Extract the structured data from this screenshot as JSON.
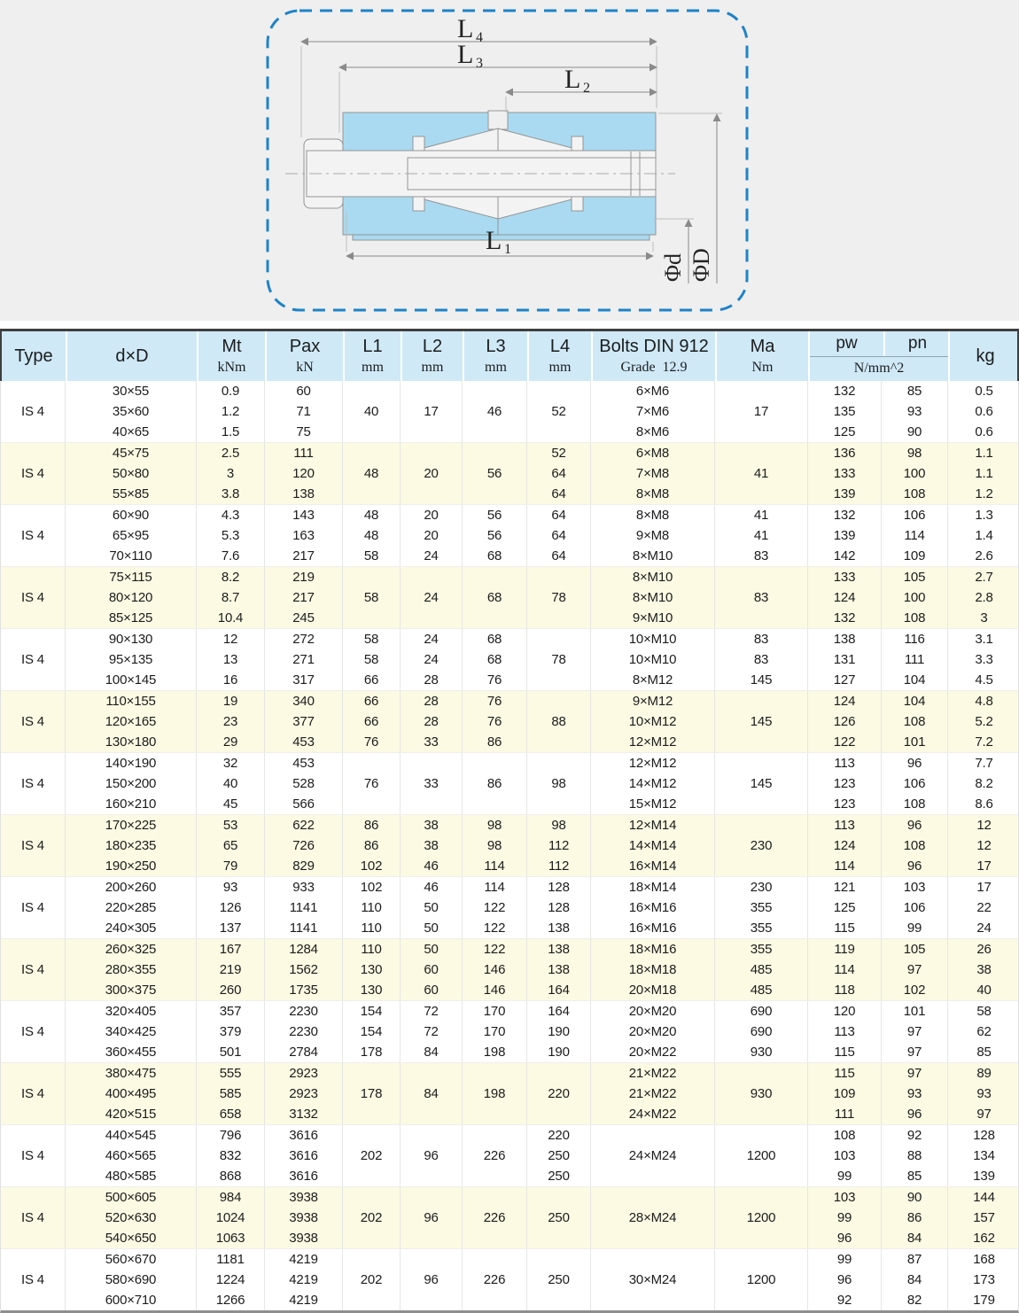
{
  "colors": {
    "hero_bg": "#efefef",
    "dashed_frame": "#1d83c9",
    "part_fill": "#a9daf1",
    "part_outline": "#8e8e8e",
    "header_bg": "#cfe9f7",
    "band_yellow": "#fcfae3",
    "top_border": "#3f3f3f"
  },
  "diagram": {
    "labels": {
      "l4": {
        "base": "L",
        "sub": "4"
      },
      "l3": {
        "base": "L",
        "sub": "3"
      },
      "l2": {
        "base": "L",
        "sub": "2"
      },
      "l1": {
        "base": "L",
        "sub": "1"
      },
      "phi_d": "Φd",
      "phi_D": "ΦD"
    }
  },
  "table": {
    "header": {
      "type": "Type",
      "dxd": "d×D",
      "mt": {
        "l1": "Mt",
        "l2": "kNm"
      },
      "pax": {
        "l1": "Pax",
        "l2": "kN"
      },
      "L1": {
        "l1": "L1",
        "l2": "mm"
      },
      "L2": {
        "l1": "L2",
        "l2": "mm"
      },
      "L3": {
        "l1": "L3",
        "l2": "mm"
      },
      "L4": {
        "l1": "L4",
        "l2": "mm"
      },
      "bolts": {
        "l1": "Bolts DIN 912",
        "l2": "Grade  12.9"
      },
      "ma": {
        "l1": "Ma",
        "l2": "Nm"
      },
      "pw": "pw",
      "pn": "pn",
      "pwpn_unit": "N/mm^2",
      "kg": "kg"
    },
    "groups": [
      {
        "type": "IS 4",
        "shaded": false,
        "rows": [
          {
            "dxd": "30×55",
            "mt": "0.9",
            "pax": "60",
            "l1": "",
            "l2": "",
            "l3": "",
            "l4": "",
            "bolts": "6×M6",
            "ma": "",
            "pw": "132",
            "pn": "85",
            "kg": "0.5"
          },
          {
            "dxd": "35×60",
            "mt": "1.2",
            "pax": "71",
            "l1": "40",
            "l2": "17",
            "l3": "46",
            "l4": "52",
            "bolts": "7×M6",
            "ma": "17",
            "pw": "135",
            "pn": "93",
            "kg": "0.6"
          },
          {
            "dxd": "40×65",
            "mt": "1.5",
            "pax": "75",
            "l1": "",
            "l2": "",
            "l3": "",
            "l4": "",
            "bolts": "8×M6",
            "ma": "",
            "pw": "125",
            "pn": "90",
            "kg": "0.6"
          }
        ]
      },
      {
        "type": "IS 4",
        "shaded": true,
        "rows": [
          {
            "dxd": "45×75",
            "mt": "2.5",
            "pax": "111",
            "l1": "",
            "l2": "",
            "l3": "",
            "l4": "52",
            "bolts": "6×M8",
            "ma": "",
            "pw": "136",
            "pn": "98",
            "kg": "1.1"
          },
          {
            "dxd": "50×80",
            "mt": "3",
            "pax": "120",
            "l1": "48",
            "l2": "20",
            "l3": "56",
            "l4": "64",
            "bolts": "7×M8",
            "ma": "41",
            "pw": "133",
            "pn": "100",
            "kg": "1.1"
          },
          {
            "dxd": "55×85",
            "mt": "3.8",
            "pax": "138",
            "l1": "",
            "l2": "",
            "l3": "",
            "l4": "64",
            "bolts": "8×M8",
            "ma": "",
            "pw": "139",
            "pn": "108",
            "kg": "1.2"
          }
        ]
      },
      {
        "type": "IS 4",
        "shaded": false,
        "rows": [
          {
            "dxd": "60×90",
            "mt": "4.3",
            "pax": "143",
            "l1": "48",
            "l2": "20",
            "l3": "56",
            "l4": "64",
            "bolts": "8×M8",
            "ma": "41",
            "pw": "132",
            "pn": "106",
            "kg": "1.3"
          },
          {
            "dxd": "65×95",
            "mt": "5.3",
            "pax": "163",
            "l1": "48",
            "l2": "20",
            "l3": "56",
            "l4": "64",
            "bolts": "9×M8",
            "ma": "41",
            "pw": "139",
            "pn": "114",
            "kg": "1.4"
          },
          {
            "dxd": "70×110",
            "mt": "7.6",
            "pax": "217",
            "l1": "58",
            "l2": "24",
            "l3": "68",
            "l4": "64",
            "bolts": "8×M10",
            "ma": "83",
            "pw": "142",
            "pn": "109",
            "kg": "2.6"
          }
        ]
      },
      {
        "type": "IS 4",
        "shaded": true,
        "rows": [
          {
            "dxd": "75×115",
            "mt": "8.2",
            "pax": "219",
            "l1": "",
            "l2": "",
            "l3": "",
            "l4": "",
            "bolts": "8×M10",
            "ma": "",
            "pw": "133",
            "pn": "105",
            "kg": "2.7"
          },
          {
            "dxd": "80×120",
            "mt": "8.7",
            "pax": "217",
            "l1": "58",
            "l2": "24",
            "l3": "68",
            "l4": "78",
            "bolts": "8×M10",
            "ma": "83",
            "pw": "124",
            "pn": "100",
            "kg": "2.8"
          },
          {
            "dxd": "85×125",
            "mt": "10.4",
            "pax": "245",
            "l1": "",
            "l2": "",
            "l3": "",
            "l4": "",
            "bolts": "9×M10",
            "ma": "",
            "pw": "132",
            "pn": "108",
            "kg": "3"
          }
        ]
      },
      {
        "type": "IS 4",
        "shaded": false,
        "rows": [
          {
            "dxd": "90×130",
            "mt": "12",
            "pax": "272",
            "l1": "58",
            "l2": "24",
            "l3": "68",
            "l4": "",
            "bolts": "10×M10",
            "ma": "83",
            "pw": "138",
            "pn": "116",
            "kg": "3.1"
          },
          {
            "dxd": "95×135",
            "mt": "13",
            "pax": "271",
            "l1": "58",
            "l2": "24",
            "l3": "68",
            "l4": "78",
            "bolts": "10×M10",
            "ma": "83",
            "pw": "131",
            "pn": "111",
            "kg": "3.3"
          },
          {
            "dxd": "100×145",
            "mt": "16",
            "pax": "317",
            "l1": "66",
            "l2": "28",
            "l3": "76",
            "l4": "",
            "bolts": "8×M12",
            "ma": "145",
            "pw": "127",
            "pn": "104",
            "kg": "4.5"
          }
        ]
      },
      {
        "type": "IS 4",
        "shaded": true,
        "rows": [
          {
            "dxd": "110×155",
            "mt": "19",
            "pax": "340",
            "l1": "66",
            "l2": "28",
            "l3": "76",
            "l4": "",
            "bolts": "9×M12",
            "ma": "",
            "pw": "124",
            "pn": "104",
            "kg": "4.8"
          },
          {
            "dxd": "120×165",
            "mt": "23",
            "pax": "377",
            "l1": "66",
            "l2": "28",
            "l3": "76",
            "l4": "88",
            "bolts": "10×M12",
            "ma": "145",
            "pw": "126",
            "pn": "108",
            "kg": "5.2"
          },
          {
            "dxd": "130×180",
            "mt": "29",
            "pax": "453",
            "l1": "76",
            "l2": "33",
            "l3": "86",
            "l4": "",
            "bolts": "12×M12",
            "ma": "",
            "pw": "122",
            "pn": "101",
            "kg": "7.2"
          }
        ]
      },
      {
        "type": "IS 4",
        "shaded": false,
        "rows": [
          {
            "dxd": "140×190",
            "mt": "32",
            "pax": "453",
            "l1": "",
            "l2": "",
            "l3": "",
            "l4": "",
            "bolts": "12×M12",
            "ma": "",
            "pw": "113",
            "pn": "96",
            "kg": "7.7"
          },
          {
            "dxd": "150×200",
            "mt": "40",
            "pax": "528",
            "l1": "76",
            "l2": "33",
            "l3": "86",
            "l4": "98",
            "bolts": "14×M12",
            "ma": "145",
            "pw": "123",
            "pn": "106",
            "kg": "8.2"
          },
          {
            "dxd": "160×210",
            "mt": "45",
            "pax": "566",
            "l1": "",
            "l2": "",
            "l3": "",
            "l4": "",
            "bolts": "15×M12",
            "ma": "",
            "pw": "123",
            "pn": "108",
            "kg": "8.6"
          }
        ]
      },
      {
        "type": "IS 4",
        "shaded": true,
        "rows": [
          {
            "dxd": "170×225",
            "mt": "53",
            "pax": "622",
            "l1": "86",
            "l2": "38",
            "l3": "98",
            "l4": "98",
            "bolts": "12×M14",
            "ma": "",
            "pw": "113",
            "pn": "96",
            "kg": "12"
          },
          {
            "dxd": "180×235",
            "mt": "65",
            "pax": "726",
            "l1": "86",
            "l2": "38",
            "l3": "98",
            "l4": "112",
            "bolts": "14×M14",
            "ma": "230",
            "pw": "124",
            "pn": "108",
            "kg": "12"
          },
          {
            "dxd": "190×250",
            "mt": "79",
            "pax": "829",
            "l1": "102",
            "l2": "46",
            "l3": "114",
            "l4": "112",
            "bolts": "16×M14",
            "ma": "",
            "pw": "114",
            "pn": "96",
            "kg": "17"
          }
        ]
      },
      {
        "type": "IS 4",
        "shaded": false,
        "rows": [
          {
            "dxd": "200×260",
            "mt": "93",
            "pax": "933",
            "l1": "102",
            "l2": "46",
            "l3": "114",
            "l4": "128",
            "bolts": "18×M14",
            "ma": "230",
            "pw": "121",
            "pn": "103",
            "kg": "17"
          },
          {
            "dxd": "220×285",
            "mt": "126",
            "pax": "1141",
            "l1": "110",
            "l2": "50",
            "l3": "122",
            "l4": "128",
            "bolts": "16×M16",
            "ma": "355",
            "pw": "125",
            "pn": "106",
            "kg": "22"
          },
          {
            "dxd": "240×305",
            "mt": "137",
            "pax": "1141",
            "l1": "110",
            "l2": "50",
            "l3": "122",
            "l4": "138",
            "bolts": "16×M16",
            "ma": "355",
            "pw": "115",
            "pn": "99",
            "kg": "24"
          }
        ]
      },
      {
        "type": "IS 4",
        "shaded": true,
        "rows": [
          {
            "dxd": "260×325",
            "mt": "167",
            "pax": "1284",
            "l1": "110",
            "l2": "50",
            "l3": "122",
            "l4": "138",
            "bolts": "18×M16",
            "ma": "355",
            "pw": "119",
            "pn": "105",
            "kg": "26"
          },
          {
            "dxd": "280×355",
            "mt": "219",
            "pax": "1562",
            "l1": "130",
            "l2": "60",
            "l3": "146",
            "l4": "138",
            "bolts": "18×M18",
            "ma": "485",
            "pw": "114",
            "pn": "97",
            "kg": "38"
          },
          {
            "dxd": "300×375",
            "mt": "260",
            "pax": "1735",
            "l1": "130",
            "l2": "60",
            "l3": "146",
            "l4": "164",
            "bolts": "20×M18",
            "ma": "485",
            "pw": "118",
            "pn": "102",
            "kg": "40"
          }
        ]
      },
      {
        "type": "IS 4",
        "shaded": false,
        "rows": [
          {
            "dxd": "320×405",
            "mt": "357",
            "pax": "2230",
            "l1": "154",
            "l2": "72",
            "l3": "170",
            "l4": "164",
            "bolts": "20×M20",
            "ma": "690",
            "pw": "120",
            "pn": "101",
            "kg": "58"
          },
          {
            "dxd": "340×425",
            "mt": "379",
            "pax": "2230",
            "l1": "154",
            "l2": "72",
            "l3": "170",
            "l4": "190",
            "bolts": "20×M20",
            "ma": "690",
            "pw": "113",
            "pn": "97",
            "kg": "62"
          },
          {
            "dxd": "360×455",
            "mt": "501",
            "pax": "2784",
            "l1": "178",
            "l2": "84",
            "l3": "198",
            "l4": "190",
            "bolts": "20×M22",
            "ma": "930",
            "pw": "115",
            "pn": "97",
            "kg": "85"
          }
        ]
      },
      {
        "type": "IS 4",
        "shaded": true,
        "rows": [
          {
            "dxd": "380×475",
            "mt": "555",
            "pax": "2923",
            "l1": "",
            "l2": "",
            "l3": "",
            "l4": "",
            "bolts": "21×M22",
            "ma": "",
            "pw": "115",
            "pn": "97",
            "kg": "89"
          },
          {
            "dxd": "400×495",
            "mt": "585",
            "pax": "2923",
            "l1": "178",
            "l2": "84",
            "l3": "198",
            "l4": "220",
            "bolts": "21×M22",
            "ma": "930",
            "pw": "109",
            "pn": "93",
            "kg": "93"
          },
          {
            "dxd": "420×515",
            "mt": "658",
            "pax": "3132",
            "l1": "",
            "l2": "",
            "l3": "",
            "l4": "",
            "bolts": "24×M22",
            "ma": "",
            "pw": "111",
            "pn": "96",
            "kg": "97"
          }
        ]
      },
      {
        "type": "IS 4",
        "shaded": false,
        "rows": [
          {
            "dxd": "440×545",
            "mt": "796",
            "pax": "3616",
            "l1": "",
            "l2": "",
            "l3": "",
            "l4": "220",
            "bolts": "",
            "ma": "",
            "pw": "108",
            "pn": "92",
            "kg": "128"
          },
          {
            "dxd": "460×565",
            "mt": "832",
            "pax": "3616",
            "l1": "202",
            "l2": "96",
            "l3": "226",
            "l4": "250",
            "bolts": "24×M24",
            "ma": "1200",
            "pw": "103",
            "pn": "88",
            "kg": "134"
          },
          {
            "dxd": "480×585",
            "mt": "868",
            "pax": "3616",
            "l1": "",
            "l2": "",
            "l3": "",
            "l4": "250",
            "bolts": "",
            "ma": "",
            "pw": "99",
            "pn": "85",
            "kg": "139"
          }
        ]
      },
      {
        "type": "IS 4",
        "shaded": true,
        "rows": [
          {
            "dxd": "500×605",
            "mt": "984",
            "pax": "3938",
            "l1": "",
            "l2": "",
            "l3": "",
            "l4": "",
            "bolts": "",
            "ma": "",
            "pw": "103",
            "pn": "90",
            "kg": "144"
          },
          {
            "dxd": "520×630",
            "mt": "1024",
            "pax": "3938",
            "l1": "202",
            "l2": "96",
            "l3": "226",
            "l4": "250",
            "bolts": "28×M24",
            "ma": "1200",
            "pw": "99",
            "pn": "86",
            "kg": "157"
          },
          {
            "dxd": "540×650",
            "mt": "1063",
            "pax": "3938",
            "l1": "",
            "l2": "",
            "l3": "",
            "l4": "",
            "bolts": "",
            "ma": "",
            "pw": "96",
            "pn": "84",
            "kg": "162"
          }
        ]
      },
      {
        "type": "IS 4",
        "shaded": false,
        "rows": [
          {
            "dxd": "560×670",
            "mt": "1181",
            "pax": "4219",
            "l1": "",
            "l2": "",
            "l3": "",
            "l4": "",
            "bolts": "",
            "ma": "",
            "pw": "99",
            "pn": "87",
            "kg": "168"
          },
          {
            "dxd": "580×690",
            "mt": "1224",
            "pax": "4219",
            "l1": "202",
            "l2": "96",
            "l3": "226",
            "l4": "250",
            "bolts": "30×M24",
            "ma": "1200",
            "pw": "96",
            "pn": "84",
            "kg": "173"
          },
          {
            "dxd": "600×710",
            "mt": "1266",
            "pax": "4219",
            "l1": "",
            "l2": "",
            "l3": "",
            "l4": "",
            "bolts": "",
            "ma": "",
            "pw": "92",
            "pn": "82",
            "kg": "179"
          }
        ]
      }
    ]
  }
}
